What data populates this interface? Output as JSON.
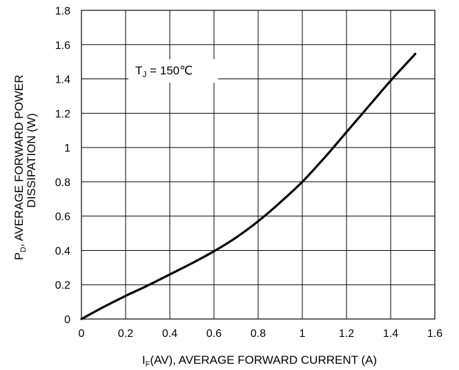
{
  "chart_data": {
    "type": "line",
    "annotation": {
      "main": "T",
      "sub": "J",
      "rest": " = 150℃"
    },
    "xlabel": {
      "main": "I",
      "sub": "F",
      "rest": "(AV), AVERAGE FORWARD CURRENT (A)"
    },
    "ylabel": {
      "line1_main": "P",
      "line1_sub": "D",
      "line1_rest": ", AVERAGE FORWARD POWER",
      "line2": "DISSIPATION (W)"
    },
    "xlim": [
      0,
      1.6
    ],
    "ylim": [
      0,
      1.8
    ],
    "x_ticks": [
      "0",
      "0.2",
      "0.4",
      "0.6",
      "0.8",
      "1",
      "1.2",
      "1.4",
      "1.6"
    ],
    "y_ticks": [
      "0",
      "0.2",
      "0.4",
      "0.6",
      "0.8",
      "1",
      "1.2",
      "1.4",
      "1.6",
      "1.8"
    ],
    "grid": true,
    "series": [
      {
        "color": "#000000",
        "x": [
          0,
          0.1,
          0.2,
          0.3,
          0.4,
          0.5,
          0.6,
          0.7,
          0.8,
          0.9,
          1.0,
          1.1,
          1.2,
          1.3,
          1.4,
          1.5,
          1.51
        ],
        "y": [
          0,
          0.07,
          0.135,
          0.195,
          0.26,
          0.325,
          0.395,
          0.475,
          0.57,
          0.68,
          0.8,
          0.94,
          1.09,
          1.24,
          1.39,
          1.53,
          1.545
        ]
      }
    ]
  }
}
